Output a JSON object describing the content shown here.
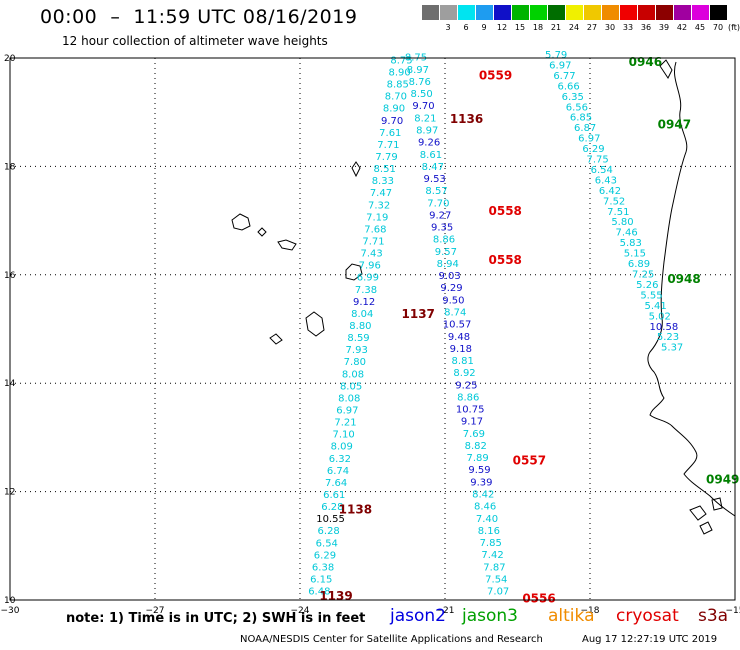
{
  "header": {
    "title": "00:00  –  11:59 UTC 08/16/2019",
    "subtitle": "12 hour collection of altimeter wave heights"
  },
  "colorbar": {
    "unit": "(ft)",
    "bins": [
      {
        "label": "",
        "color": "#6e6e6e"
      },
      {
        "label": "3",
        "color": "#9e9e9e"
      },
      {
        "label": "6",
        "color": "#00e4f0"
      },
      {
        "label": "9",
        "color": "#1e9cf0"
      },
      {
        "label": "12",
        "color": "#1010c8"
      },
      {
        "label": "15",
        "color": "#00b400"
      },
      {
        "label": "18",
        "color": "#00d200"
      },
      {
        "label": "21",
        "color": "#006e00"
      },
      {
        "label": "24",
        "color": "#f0f000"
      },
      {
        "label": "27",
        "color": "#f0c800"
      },
      {
        "label": "30",
        "color": "#f08c00"
      },
      {
        "label": "33",
        "color": "#f00000"
      },
      {
        "label": "36",
        "color": "#c80000"
      },
      {
        "label": "39",
        "color": "#8c0000"
      },
      {
        "label": "42",
        "color": "#a000a0"
      },
      {
        "label": "45",
        "color": "#dc00dc"
      },
      {
        "label": "70",
        "color": "#000000"
      }
    ]
  },
  "axes": {
    "x_ticks": [
      {
        "value": -30,
        "label": "−30"
      },
      {
        "value": -27,
        "label": "−27"
      },
      {
        "value": -24,
        "label": "−24"
      },
      {
        "value": -21,
        "label": "−21"
      },
      {
        "value": -18,
        "label": "−18"
      },
      {
        "value": -15,
        "label": "−15"
      }
    ],
    "y_ticks": [
      {
        "value": 10,
        "label": "10"
      },
      {
        "value": 12,
        "label": "12"
      },
      {
        "value": 14,
        "label": "14"
      },
      {
        "value": 16,
        "label": "16"
      },
      {
        "value": 18,
        "label": "18"
      },
      {
        "value": 20,
        "label": "20"
      }
    ]
  },
  "pass_times": [
    {
      "label": "0559",
      "color": "#e00000",
      "lon": -20.3,
      "lat": 19.6
    },
    {
      "label": "0946",
      "color": "#008000",
      "lon": -17.2,
      "lat": 19.85
    },
    {
      "label": "1136",
      "color": "#800000",
      "lon": -20.9,
      "lat": 18.8
    },
    {
      "label": "0947",
      "color": "#008000",
      "lon": -16.6,
      "lat": 18.7
    },
    {
      "label": "0558",
      "color": "#e00000",
      "lon": -20.1,
      "lat": 17.1
    },
    {
      "label": "0558",
      "color": "#e00000",
      "lon": -20.1,
      "lat": 16.2
    },
    {
      "label": "0948",
      "color": "#008000",
      "lon": -16.4,
      "lat": 15.85
    },
    {
      "label": "1137",
      "color": "#800000",
      "lon": -21.9,
      "lat": 15.2
    },
    {
      "label": "0557",
      "color": "#e00000",
      "lon": -19.6,
      "lat": 12.5
    },
    {
      "label": "0949",
      "color": "#008000",
      "lon": -15.6,
      "lat": 12.15
    },
    {
      "label": "1138",
      "color": "#800000",
      "lon": -23.2,
      "lat": 11.6
    },
    {
      "label": "1139",
      "color": "#800000",
      "lon": -23.6,
      "lat": 10.0
    },
    {
      "label": "0556",
      "color": "#e00000",
      "lon": -19.4,
      "lat": 9.95
    }
  ],
  "tracks": {
    "track_1137": {
      "color": "#00c8d8",
      "start": [
        -21.9,
        19.9
      ],
      "end": [
        -23.6,
        10.1
      ],
      "values": [
        "8.75",
        "8.90",
        "8.85",
        "8.70",
        "8.90",
        "9.70",
        "7.61",
        "7.71",
        "7.79",
        "8.51",
        "8.33",
        "7.47",
        "7.32",
        "7.19",
        "7.68",
        "7.71",
        "7.43",
        "7.96",
        "6.99",
        "7.38",
        "9.12",
        "8.04",
        "8.80",
        "8.59",
        "7.93",
        "7.80",
        "8.08",
        "8.05",
        "8.08",
        "6.97",
        "7.21",
        "7.10",
        "8.09",
        "6.32",
        "6.74",
        "7.64",
        "6.61",
        "6.28",
        "10.55",
        "6.28",
        "6.54",
        "6.29",
        "6.38",
        "6.15",
        "6.48"
      ],
      "dark": {
        "9.70": "#1010c8",
        "9.12": "#1010c8",
        "10.55": "#000000"
      }
    },
    "track_0558": {
      "color": "#00c8d8",
      "start": [
        -21.6,
        19.95
      ],
      "end": [
        -19.9,
        10.1
      ],
      "values": [
        "8.75",
        "8.97",
        "8.76",
        "8.50",
        "9.70",
        "8.21",
        "8.97",
        "9.26",
        "8.61",
        "8.47",
        "9.53",
        "8.57",
        "7.70",
        "9.27",
        "9.35",
        "8.86",
        "9.57",
        "8.94",
        "9.03",
        "9.29",
        "9.50",
        "8.74",
        "10.57",
        "9.48",
        "9.18",
        "8.81",
        "8.92",
        "9.25",
        "8.86",
        "10.75",
        "9.17",
        "7.69",
        "8.82",
        "7.89",
        "9.59",
        "9.39",
        "8.42",
        "8.46",
        "7.40",
        "8.16",
        "7.85",
        "7.42",
        "7.87",
        "7.54",
        "7.07"
      ],
      "dark": {
        "9.70": "#1010c8",
        "9.26": "#1010c8",
        "9.53": "#1010c8",
        "9.27": "#1010c8",
        "9.35": "#1010c8",
        "9.03": "#1010c8",
        "9.29": "#1010c8",
        "9.50": "#1010c8",
        "10.57": "#1010c8",
        "9.48": "#1010c8",
        "9.18": "#1010c8",
        "9.25": "#1010c8",
        "10.75": "#1010c8",
        "9.17": "#1010c8",
        "9.59": "#1010c8",
        "9.39": "#1010c8"
      }
    },
    "track_0947": {
      "color": "#00c8d8",
      "start": [
        -18.7,
        20.0
      ],
      "end": [
        -16.3,
        14.6
      ],
      "values": [
        "5.79",
        "6.97",
        "6.77",
        "6.66",
        "6.35",
        "6.56",
        "6.85",
        "6.87",
        "6.97",
        "6.29",
        "7.75",
        "6.54",
        "6.43",
        "6.42",
        "7.52",
        "7.51",
        "5.80",
        "7.46",
        "5.83",
        "5.15",
        "6.89",
        "7.25",
        "5.26",
        "5.55",
        "5.41",
        "5.02",
        "10.58",
        "5.23",
        "5.37"
      ],
      "dark": {
        "10.58": "#1010c8"
      }
    }
  },
  "legend": {
    "note": "note: 1) Time is in UTC; 2) SWH is in feet",
    "sats": [
      {
        "name": "jason2",
        "color": "#0000e0"
      },
      {
        "name": "jason3",
        "color": "#00a000"
      },
      {
        "name": "altika",
        "color": "#f08c00"
      },
      {
        "name": "cryosat",
        "color": "#e00000"
      },
      {
        "name": "s3a",
        "color": "#800000"
      }
    ]
  },
  "footer": {
    "credit": "NOAA/NESDIS Center for Satellite Applications and Research",
    "stamp": "Aug 17 12:27:19 UTC 2019"
  }
}
